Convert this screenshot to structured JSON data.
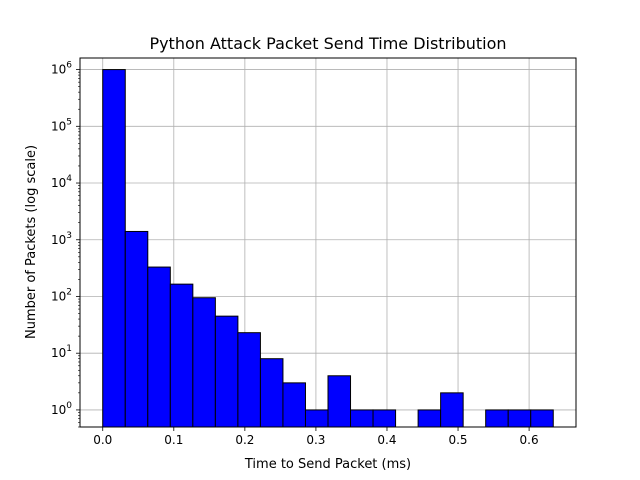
{
  "chart_data": {
    "type": "bar",
    "title": "Python Attack Packet Send Time Distribution",
    "xlabel": "Time to Send Packet (ms)",
    "ylabel": "Number of Packets (log scale)",
    "y_scale": "log",
    "xlim": [
      -0.032,
      0.666
    ],
    "ylim": [
      0.5,
      1600000
    ],
    "grid": true,
    "bar_color": "#0000ff",
    "edge_color": "#000000",
    "grid_color": "#b0b0b0",
    "x_ticks": [
      {
        "value": 0.0,
        "label": "0.0"
      },
      {
        "value": 0.1,
        "label": "0.1"
      },
      {
        "value": 0.2,
        "label": "0.2"
      },
      {
        "value": 0.3,
        "label": "0.3"
      },
      {
        "value": 0.4,
        "label": "0.4"
      },
      {
        "value": 0.5,
        "label": "0.5"
      },
      {
        "value": 0.6,
        "label": "0.6"
      }
    ],
    "y_ticks": [
      {
        "value": 1,
        "base": "10",
        "exp": "0"
      },
      {
        "value": 10,
        "base": "10",
        "exp": "1"
      },
      {
        "value": 100,
        "base": "10",
        "exp": "2"
      },
      {
        "value": 1000,
        "base": "10",
        "exp": "3"
      },
      {
        "value": 10000,
        "base": "10",
        "exp": "4"
      },
      {
        "value": 100000,
        "base": "10",
        "exp": "5"
      },
      {
        "value": 1000000,
        "base": "10",
        "exp": "6"
      }
    ],
    "bins": [
      {
        "x0": 0.0,
        "x1": 0.0317,
        "count": 1000000
      },
      {
        "x0": 0.0317,
        "x1": 0.0634,
        "count": 1400
      },
      {
        "x0": 0.0634,
        "x1": 0.0951,
        "count": 330
      },
      {
        "x0": 0.0951,
        "x1": 0.1268,
        "count": 165
      },
      {
        "x0": 0.1268,
        "x1": 0.1585,
        "count": 95
      },
      {
        "x0": 0.1585,
        "x1": 0.1902,
        "count": 45
      },
      {
        "x0": 0.1902,
        "x1": 0.2219,
        "count": 23
      },
      {
        "x0": 0.2219,
        "x1": 0.2536,
        "count": 8
      },
      {
        "x0": 0.2536,
        "x1": 0.2853,
        "count": 3
      },
      {
        "x0": 0.2853,
        "x1": 0.317,
        "count": 1
      },
      {
        "x0": 0.317,
        "x1": 0.3487,
        "count": 4
      },
      {
        "x0": 0.3487,
        "x1": 0.3804,
        "count": 1
      },
      {
        "x0": 0.3804,
        "x1": 0.4121,
        "count": 1
      },
      {
        "x0": 0.4121,
        "x1": 0.4438,
        "count": 0
      },
      {
        "x0": 0.4438,
        "x1": 0.4755,
        "count": 1
      },
      {
        "x0": 0.4755,
        "x1": 0.5072,
        "count": 2
      },
      {
        "x0": 0.5072,
        "x1": 0.5389,
        "count": 0
      },
      {
        "x0": 0.5389,
        "x1": 0.5706,
        "count": 1
      },
      {
        "x0": 0.5706,
        "x1": 0.6023,
        "count": 1
      },
      {
        "x0": 0.6023,
        "x1": 0.634,
        "count": 1
      }
    ]
  }
}
